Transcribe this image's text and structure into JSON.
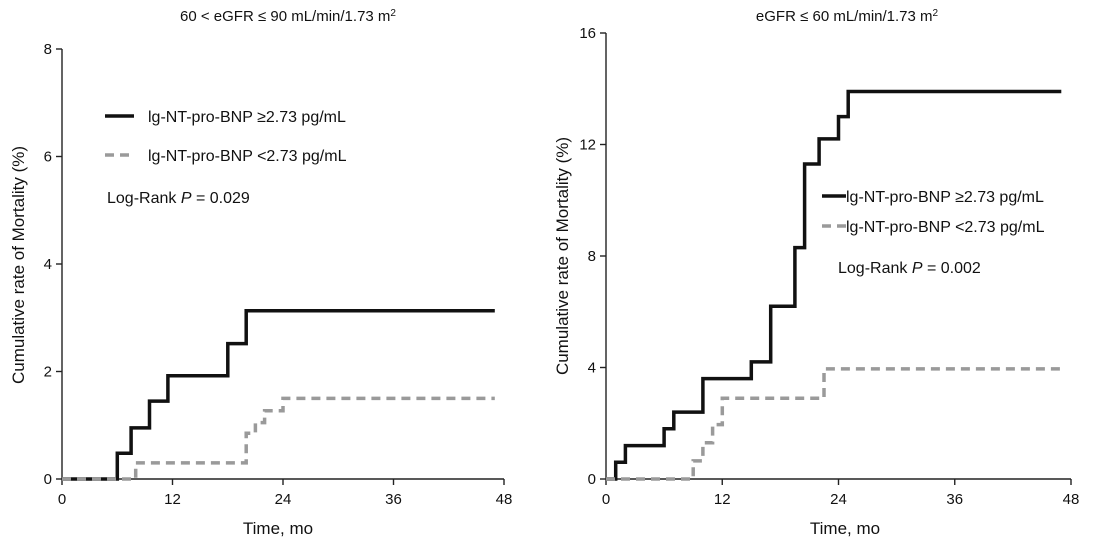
{
  "chart_data": [
    {
      "type": "line",
      "step": true,
      "title": "60 < eGFR ≤ 90 mL/min/1.73 m²",
      "title_main": "60 < eGFR ≤ 90 mL/min/1.73 m",
      "title_sup": "2",
      "xlabel": "Time, mo",
      "ylabel": "Cumulative rate of Mortality (%)",
      "xlim": [
        0,
        48
      ],
      "ylim": [
        0,
        8
      ],
      "xticks": [
        0,
        12,
        24,
        36,
        48
      ],
      "yticks": [
        0,
        2,
        4,
        6,
        8
      ],
      "legend_position": "top-left",
      "annotation": {
        "prefix": "Log-Rank ",
        "p_label": "P",
        "value": " = 0.029"
      },
      "series": [
        {
          "name": "lg-NT-pro-BNP ≥2.73 pg/mL",
          "color": "#111111",
          "dashed": false,
          "x": [
            0,
            6,
            6,
            7.5,
            7.5,
            9.5,
            9.5,
            11.5,
            11.5,
            18,
            18,
            20,
            20,
            47
          ],
          "y": [
            0,
            0,
            0.48,
            0.48,
            0.95,
            0.95,
            1.45,
            1.45,
            1.92,
            1.92,
            2.52,
            2.52,
            3.13,
            3.13
          ]
        },
        {
          "name": "lg-NT-pro-BNP <2.73 pg/mL",
          "color": "#9a9a9a",
          "dashed": true,
          "x": [
            0,
            8,
            8,
            20,
            20,
            21,
            21,
            22,
            22,
            24,
            24,
            47
          ],
          "y": [
            0,
            0,
            0.3,
            0.3,
            0.85,
            0.85,
            1.05,
            1.05,
            1.27,
            1.27,
            1.5,
            1.5
          ]
        }
      ]
    },
    {
      "type": "line",
      "step": true,
      "title": "eGFR ≤ 60 mL/min/1.73 m²",
      "title_main": "eGFR ≤ 60 mL/min/1.73 m",
      "title_sup": "2",
      "xlabel": "Time, mo",
      "ylabel": "Cumulative rate of Mortality (%)",
      "xlim": [
        0,
        48
      ],
      "ylim": [
        0,
        16
      ],
      "xticks": [
        0,
        12,
        24,
        36,
        48
      ],
      "yticks": [
        0,
        4,
        8,
        12,
        16
      ],
      "legend_position": "right",
      "annotation": {
        "prefix": "Log-Rank ",
        "p_label": "P",
        "value": " = 0.002"
      },
      "series": [
        {
          "name": "lg-NT-pro-BNP ≥2.73 pg/mL",
          "color": "#111111",
          "dashed": false,
          "x": [
            0,
            1,
            1,
            2,
            2,
            6,
            6,
            7,
            7,
            10,
            10,
            15,
            15,
            17,
            17,
            19.5,
            19.5,
            20.5,
            20.5,
            22,
            22,
            24,
            24,
            25,
            25,
            26,
            26,
            47
          ],
          "y": [
            0,
            0,
            0.6,
            0.6,
            1.2,
            1.2,
            1.8,
            1.8,
            2.4,
            2.4,
            3.6,
            3.6,
            4.2,
            4.2,
            6.2,
            6.2,
            8.3,
            8.3,
            11.3,
            11.3,
            12.2,
            12.2,
            13.0,
            13.0,
            13.9,
            13.9,
            13.9,
            13.9
          ]
        },
        {
          "name": "lg-NT-pro-BNP <2.73 pg/mL",
          "color": "#9a9a9a",
          "dashed": true,
          "x": [
            0,
            9,
            9,
            10,
            10,
            11,
            11,
            12,
            12,
            19,
            19,
            22.5,
            22.5,
            47
          ],
          "y": [
            0,
            0,
            0.65,
            0.65,
            1.3,
            1.3,
            1.95,
            1.95,
            2.9,
            2.9,
            2.9,
            2.9,
            3.95,
            3.95
          ]
        }
      ]
    }
  ]
}
